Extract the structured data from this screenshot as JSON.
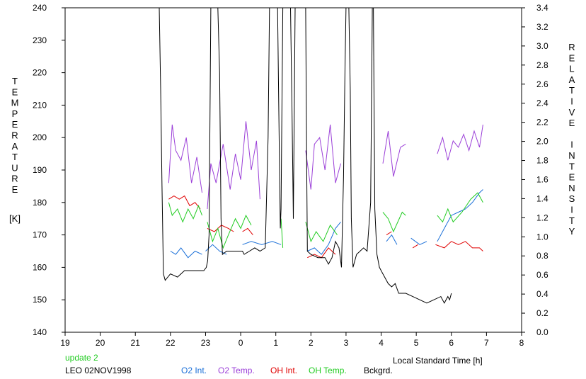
{
  "colors": {
    "o2_int": "#1a6fd8",
    "o2_temp": "#9b3fd8",
    "oh_int": "#e00000",
    "oh_temp": "#22cc22",
    "bckgrd": "#000000",
    "status": "#22cc22"
  },
  "chart_data": {
    "type": "line",
    "xlabel": "Local Standard Time [h]",
    "y_left_label_letters": [
      "T",
      "E",
      "M",
      "P",
      "E",
      "R",
      "A",
      "T",
      "U",
      "R",
      "E"
    ],
    "y_left_unit": "[K]",
    "y_right_label_letters": [
      "R",
      "E",
      "L",
      "A",
      "T",
      "I",
      "V",
      "E",
      "I",
      "N",
      "T",
      "E",
      "N",
      "S",
      "I",
      "T",
      "Y"
    ],
    "x_ticks": [
      19,
      20,
      21,
      22,
      23,
      24,
      25,
      26,
      27,
      28,
      29,
      30,
      31,
      32
    ],
    "x_tick_labels": [
      "19",
      "20",
      "21",
      "22",
      "23",
      "0",
      "1",
      "2",
      "3",
      "4",
      "5",
      "6",
      "7",
      "8"
    ],
    "xlim": [
      19,
      32
    ],
    "ylim_left": [
      140,
      240
    ],
    "ylim_right": [
      0.0,
      3.4
    ],
    "y_left_ticks": [
      "140",
      "150",
      "160",
      "170",
      "180",
      "190",
      "200",
      "210",
      "220",
      "230",
      "240"
    ],
    "y_right_ticks": [
      "0.0",
      "0.2",
      "0.4",
      "0.6",
      "0.8",
      "1.0",
      "1.2",
      "1.4",
      "1.6",
      "1.8",
      "2.0",
      "2.2",
      "2.4",
      "2.6",
      "2.8",
      "3.0",
      "3.2",
      "3.4"
    ],
    "grid": false,
    "legend_placement": "bottom",
    "series": [
      {
        "name": "O2 Int.",
        "key": "o2_int",
        "axis": "left",
        "segments": [
          [
            [
              22.0,
              165
            ],
            [
              22.15,
              164
            ],
            [
              22.3,
              166
            ],
            [
              22.5,
              163
            ],
            [
              22.7,
              165
            ],
            [
              22.9,
              164
            ]
          ],
          [
            [
              23.0,
              165
            ],
            [
              23.2,
              167
            ],
            [
              23.4,
              165
            ],
            [
              23.6,
              164
            ]
          ],
          [
            [
              24.05,
              167
            ],
            [
              24.3,
              168
            ],
            [
              24.6,
              167
            ],
            [
              24.9,
              168
            ],
            [
              25.15,
              167
            ]
          ],
          [
            [
              25.9,
              165
            ],
            [
              26.1,
              166
            ],
            [
              26.3,
              164
            ],
            [
              26.5,
              167
            ],
            [
              26.7,
              172
            ],
            [
              26.85,
              174
            ]
          ],
          [
            [
              28.15,
              168
            ],
            [
              28.3,
              170
            ],
            [
              28.45,
              167
            ]
          ],
          [
            [
              28.85,
              169
            ],
            [
              29.1,
              167
            ],
            [
              29.3,
              168
            ]
          ],
          [
            [
              29.6,
              168
            ],
            [
              29.8,
              172
            ],
            [
              30.0,
              176
            ],
            [
              30.2,
              177
            ],
            [
              30.4,
              178
            ],
            [
              30.6,
              180
            ],
            [
              30.8,
              183
            ],
            [
              30.9,
              184
            ]
          ]
        ]
      },
      {
        "name": "O2 Temp.",
        "key": "o2_temp",
        "axis": "left",
        "segments": [
          [
            [
              21.95,
              186
            ],
            [
              22.05,
              204
            ],
            [
              22.15,
              196
            ],
            [
              22.3,
              193
            ],
            [
              22.45,
              200
            ],
            [
              22.6,
              186
            ],
            [
              22.75,
              194
            ],
            [
              22.9,
              183
            ]
          ],
          [
            [
              23.05,
              178
            ],
            [
              23.15,
              192
            ],
            [
              23.3,
              186
            ],
            [
              23.5,
              198
            ],
            [
              23.7,
              184
            ],
            [
              23.85,
              195
            ],
            [
              24.0,
              187
            ],
            [
              24.15,
              205
            ],
            [
              24.3,
              190
            ],
            [
              24.45,
              199
            ],
            [
              24.55,
              181
            ]
          ],
          [
            [
              25.85,
              196
            ],
            [
              26.0,
              184
            ],
            [
              26.1,
              198
            ],
            [
              26.25,
              200
            ],
            [
              26.4,
              190
            ],
            [
              26.55,
              204
            ],
            [
              26.7,
              186
            ],
            [
              26.85,
              192
            ]
          ],
          [
            [
              28.05,
              192
            ],
            [
              28.2,
              202
            ],
            [
              28.35,
              188
            ],
            [
              28.55,
              197
            ],
            [
              28.7,
              198
            ]
          ],
          [
            [
              29.6,
              195
            ],
            [
              29.75,
              200
            ],
            [
              29.9,
              193
            ],
            [
              30.05,
              199
            ],
            [
              30.2,
              197
            ],
            [
              30.35,
              201
            ],
            [
              30.5,
              196
            ],
            [
              30.65,
              202
            ],
            [
              30.8,
              197
            ],
            [
              30.9,
              204
            ]
          ]
        ]
      },
      {
        "name": "OH Int.",
        "key": "oh_int",
        "axis": "left",
        "segments": [
          [
            [
              21.95,
              181
            ],
            [
              22.1,
              182
            ],
            [
              22.25,
              181
            ],
            [
              22.4,
              182
            ],
            [
              22.55,
              179
            ],
            [
              22.7,
              180
            ],
            [
              22.85,
              178
            ]
          ],
          [
            [
              23.05,
              172
            ],
            [
              23.25,
              171
            ],
            [
              23.45,
              173
            ],
            [
              23.65,
              172
            ],
            [
              23.8,
              171
            ]
          ],
          [
            [
              24.05,
              171
            ],
            [
              24.2,
              172
            ],
            [
              24.35,
              170
            ]
          ],
          [
            [
              25.9,
              163
            ],
            [
              26.1,
              164
            ],
            [
              26.3,
              163
            ],
            [
              26.5,
              166
            ],
            [
              26.7,
              164
            ]
          ],
          [
            [
              28.15,
              170
            ],
            [
              28.3,
              171
            ]
          ],
          [
            [
              28.9,
              166
            ],
            [
              29.05,
              167
            ]
          ],
          [
            [
              29.55,
              167
            ],
            [
              29.8,
              166
            ],
            [
              30.0,
              168
            ],
            [
              30.2,
              167
            ],
            [
              30.4,
              168
            ],
            [
              30.6,
              166
            ],
            [
              30.8,
              166
            ],
            [
              30.9,
              165
            ]
          ]
        ]
      },
      {
        "name": "OH Temp.",
        "key": "oh_temp",
        "axis": "left",
        "segments": [
          [
            [
              21.95,
              180
            ],
            [
              22.05,
              176
            ],
            [
              22.2,
              178
            ],
            [
              22.35,
              174
            ],
            [
              22.5,
              178
            ],
            [
              22.65,
              175
            ],
            [
              22.8,
              179
            ],
            [
              22.9,
              176
            ]
          ],
          [
            [
              23.05,
              174
            ],
            [
              23.2,
              168
            ],
            [
              23.35,
              172
            ],
            [
              23.5,
              166
            ],
            [
              23.65,
              170
            ],
            [
              23.85,
              175
            ],
            [
              24.0,
              172
            ],
            [
              24.15,
              176
            ],
            [
              24.3,
              173
            ]
          ],
          [
            [
              25.15,
              175
            ],
            [
              25.2,
              166
            ]
          ],
          [
            [
              25.85,
              174
            ],
            [
              26.0,
              168
            ],
            [
              26.15,
              171
            ],
            [
              26.35,
              168
            ],
            [
              26.55,
              173
            ],
            [
              26.75,
              170
            ]
          ],
          [
            [
              28.05,
              177
            ],
            [
              28.2,
              175
            ],
            [
              28.35,
              171
            ],
            [
              28.6,
              177
            ],
            [
              28.7,
              176
            ]
          ],
          [
            [
              29.6,
              176
            ],
            [
              29.75,
              174
            ],
            [
              29.9,
              178
            ],
            [
              30.05,
              174
            ],
            [
              30.3,
              177
            ],
            [
              30.55,
              181
            ],
            [
              30.75,
              183
            ],
            [
              30.9,
              180
            ]
          ]
        ]
      },
      {
        "name": "Bckgrd.",
        "key": "bckgrd",
        "axis": "left",
        "segments": [
          [
            [
              21.68,
              240
            ],
            [
              21.72,
              215
            ],
            [
              21.76,
              185
            ],
            [
              21.8,
              158
            ],
            [
              21.85,
              156
            ],
            [
              22.0,
              158
            ],
            [
              22.2,
              157
            ],
            [
              22.4,
              159
            ],
            [
              22.6,
              159
            ],
            [
              22.8,
              159
            ],
            [
              22.95,
              159
            ],
            [
              23.02,
              160
            ],
            [
              23.06,
              162
            ],
            [
              23.1,
              170
            ],
            [
              23.15,
              240
            ],
            [
              23.35,
              240
            ],
            [
              23.4,
              220
            ],
            [
              23.44,
              175
            ],
            [
              23.48,
              164
            ],
            [
              23.6,
              165
            ],
            [
              23.8,
              165
            ],
            [
              24.05,
              165
            ],
            [
              24.1,
              164
            ],
            [
              24.25,
              165
            ],
            [
              24.4,
              166
            ],
            [
              24.55,
              165
            ],
            [
              24.7,
              166
            ],
            [
              24.78,
              200
            ],
            [
              24.82,
              240
            ],
            [
              25.05,
              240
            ],
            [
              25.1,
              195
            ],
            [
              25.13,
              172
            ],
            [
              25.15,
              178
            ],
            [
              25.2,
              240
            ],
            [
              25.42,
              240
            ],
            [
              25.46,
              210
            ],
            [
              25.5,
              175
            ],
            [
              25.55,
              240
            ],
            [
              25.85,
              240
            ],
            [
              25.88,
              190
            ],
            [
              25.9,
              165
            ],
            [
              26.0,
              164
            ],
            [
              26.2,
              163
            ],
            [
              26.4,
              163
            ],
            [
              26.5,
              161
            ],
            [
              26.6,
              163
            ],
            [
              26.7,
              168
            ],
            [
              26.8,
              166
            ],
            [
              26.87,
              160
            ],
            [
              26.93,
              188
            ],
            [
              26.97,
              220
            ],
            [
              27.0,
              240
            ],
            [
              27.08,
              240
            ],
            [
              27.12,
              215
            ],
            [
              27.15,
              175
            ],
            [
              27.2,
              160
            ],
            [
              27.3,
              164
            ],
            [
              27.5,
              166
            ],
            [
              27.6,
              165
            ],
            [
              27.7,
              180
            ],
            [
              27.75,
              240
            ],
            [
              27.78,
              240
            ],
            [
              27.82,
              178
            ],
            [
              27.88,
              164
            ],
            [
              27.95,
              160
            ],
            [
              28.05,
              158
            ],
            [
              28.1,
              157
            ],
            [
              28.15,
              156
            ],
            [
              28.2,
              155
            ],
            [
              28.3,
              154
            ],
            [
              28.4,
              155
            ],
            [
              28.5,
              152
            ],
            [
              28.7,
              152
            ],
            [
              28.9,
              151
            ],
            [
              29.1,
              150
            ],
            [
              29.3,
              149
            ],
            [
              29.5,
              150
            ],
            [
              29.7,
              151
            ],
            [
              29.8,
              149
            ],
            [
              29.9,
              151
            ],
            [
              29.95,
              150
            ],
            [
              30.0,
              152
            ]
          ]
        ]
      }
    ]
  },
  "footer": {
    "status": "update 2",
    "station": "LEO 02NOV1998",
    "legend": [
      "O2 Int.",
      "O2 Temp.",
      "OH Int.",
      "OH Temp.",
      "Bckgrd."
    ]
  }
}
